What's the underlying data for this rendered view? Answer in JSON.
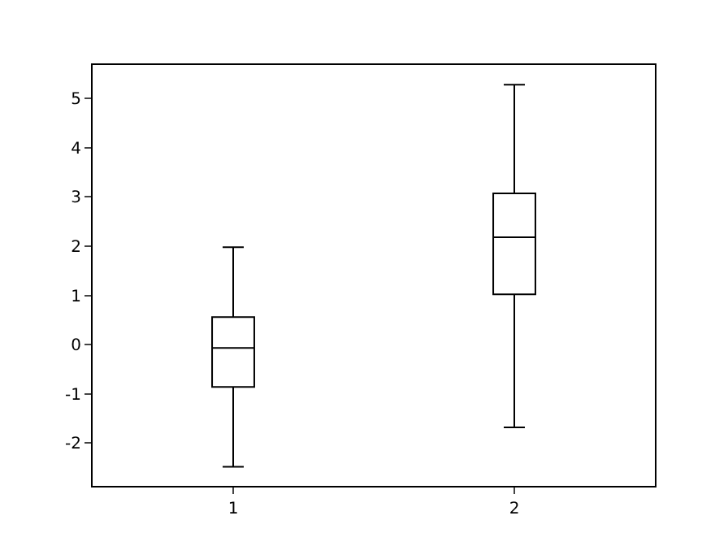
{
  "chart_data": {
    "type": "box",
    "categories": [
      "1",
      "2"
    ],
    "boxes": [
      {
        "low": -2.48,
        "q1": -0.86,
        "median": -0.07,
        "q3": 0.56,
        "high": 1.98
      },
      {
        "low": -1.68,
        "q1": 1.02,
        "median": 2.18,
        "q3": 3.07,
        "high": 5.28
      }
    ],
    "color": "#000000",
    "ylim": [
      -2.87,
      5.68
    ],
    "yticks": [
      -2,
      -1,
      0,
      1,
      2,
      3,
      4,
      5
    ],
    "grid": false,
    "legend": false
  }
}
